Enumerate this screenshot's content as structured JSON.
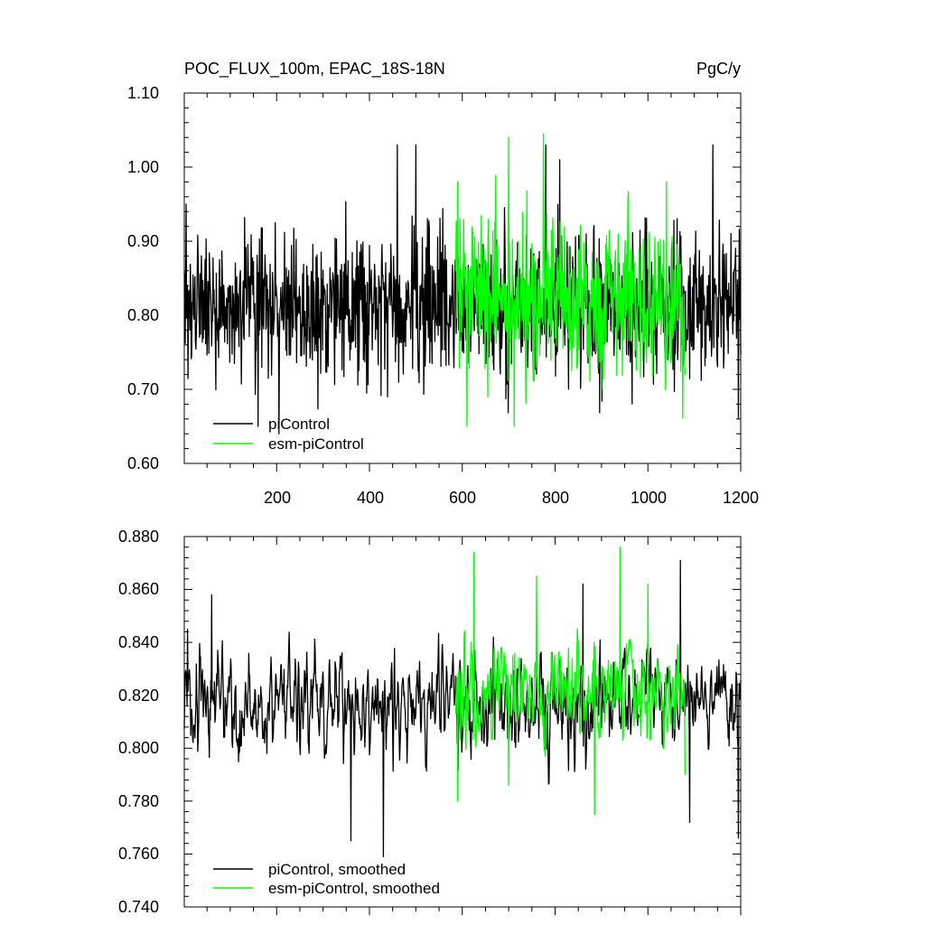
{
  "charts": {
    "top": {
      "title_left": "POC_FLUX_100m, EPAC_18S-18N",
      "title_right": "PgC/y",
      "legend": [
        "piControl",
        "esm-piControl"
      ],
      "x_tick_labels": [
        "200",
        "400",
        "600",
        "800",
        "1000",
        "1200"
      ],
      "y_tick_labels": [
        "0.60",
        "0.70",
        "0.80",
        "0.90",
        "1.00",
        "1.10"
      ]
    },
    "bottom": {
      "legend": [
        "piControl, smoothed",
        "esm-piControl, smoothed"
      ],
      "y_tick_labels": [
        "0.740",
        "0.760",
        "0.780",
        "0.800",
        "0.820",
        "0.840",
        "0.860",
        "0.880"
      ]
    }
  },
  "chart_data": [
    {
      "type": "line",
      "title": "POC_FLUX_100m, EPAC_18S-18N",
      "unit": "PgC/y",
      "xlim": [
        1,
        1200
      ],
      "ylim": [
        0.6,
        1.1
      ],
      "xticks": [
        200,
        400,
        600,
        800,
        1000,
        1200
      ],
      "yticks": [
        0.6,
        0.7,
        0.8,
        0.9,
        1.0,
        1.1
      ],
      "legend_position": "bottom-left",
      "series": [
        {
          "name": "piControl",
          "color": "#000000",
          "x_range": [
            1,
            1200
          ],
          "mean": 0.815,
          "approx_range": [
            0.65,
            1.04
          ],
          "anchors": [
            [
              5,
              0.95
            ],
            [
              160,
              0.65
            ],
            [
              205,
              0.64
            ],
            [
              460,
              1.03
            ],
            [
              500,
              1.03
            ],
            [
              780,
              1.03
            ],
            [
              810,
              1.01
            ],
            [
              1140,
              1.03
            ],
            [
              1195,
              0.66
            ]
          ]
        },
        {
          "name": "esm-piControl",
          "color": "#00ff00",
          "x_range": [
            586,
            1080
          ],
          "mean": 0.82,
          "approx_range": [
            0.65,
            1.045
          ],
          "anchors": [
            [
              590,
              0.98
            ],
            [
              610,
              0.65
            ],
            [
              700,
              1.04
            ],
            [
              712,
              0.65
            ],
            [
              775,
              1.045
            ],
            [
              900,
              0.7
            ],
            [
              1040,
              0.98
            ],
            [
              1080,
              0.72
            ]
          ]
        }
      ]
    },
    {
      "type": "line",
      "xlim": [
        1,
        1200
      ],
      "ylim": [
        0.74,
        0.88
      ],
      "xticks": [
        200,
        400,
        600,
        800,
        1000,
        1200
      ],
      "yticks": [
        0.74,
        0.76,
        0.78,
        0.8,
        0.82,
        0.84,
        0.86,
        0.88
      ],
      "legend_position": "bottom-left",
      "series": [
        {
          "name": "piControl, smoothed",
          "color": "#000000",
          "x_range": [
            1,
            1200
          ],
          "mean": 0.817,
          "approx_range": [
            0.759,
            0.87
          ],
          "anchors": [
            [
              8,
              0.845
            ],
            [
              60,
              0.858
            ],
            [
              360,
              0.765
            ],
            [
              430,
              0.759
            ],
            [
              860,
              0.862
            ],
            [
              1070,
              0.871
            ],
            [
              1090,
              0.772
            ],
            [
              1195,
              0.766
            ]
          ]
        },
        {
          "name": "esm-piControl, smoothed",
          "color": "#00ff00",
          "x_range": [
            586,
            1080
          ],
          "mean": 0.822,
          "approx_range": [
            0.775,
            0.876
          ],
          "anchors": [
            [
              590,
              0.78
            ],
            [
              625,
              0.874
            ],
            [
              700,
              0.786
            ],
            [
              760,
              0.865
            ],
            [
              885,
              0.775
            ],
            [
              940,
              0.876
            ],
            [
              1000,
              0.862
            ],
            [
              1080,
              0.79
            ]
          ]
        }
      ]
    }
  ]
}
